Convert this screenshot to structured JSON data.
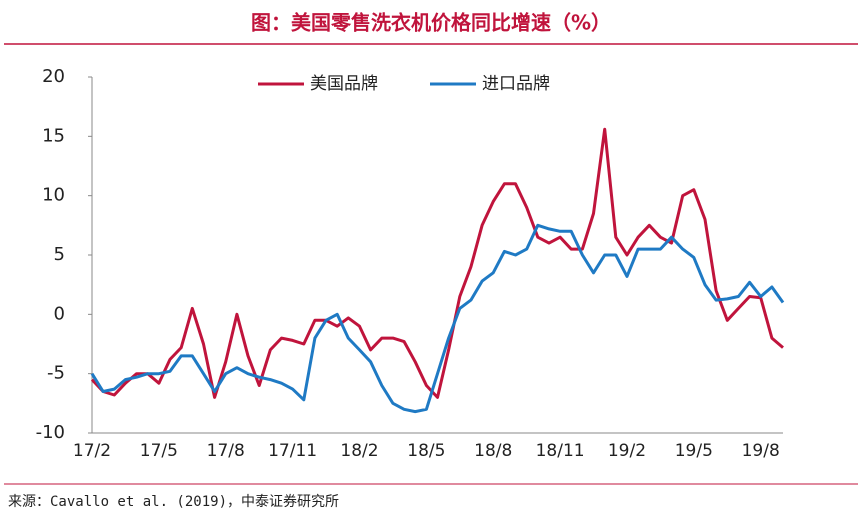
{
  "chart_data": {
    "type": "line",
    "title": "图：美国零售洗衣机价格同比增速（%）",
    "source": "来源：Cavallo et al. (2019)，中泰证券研究所",
    "categories": [
      "17/2",
      null,
      null,
      null,
      null,
      null,
      "17/5",
      null,
      null,
      null,
      null,
      null,
      "17/8",
      null,
      null,
      null,
      null,
      null,
      "17/11",
      null,
      null,
      null,
      null,
      null,
      "18/2",
      null,
      null,
      null,
      null,
      null,
      "18/5",
      null,
      null,
      null,
      null,
      null,
      "18/8",
      null,
      null,
      null,
      null,
      null,
      "18/11",
      null,
      null,
      null,
      null,
      null,
      "19/2",
      null,
      null,
      null,
      null,
      null,
      "19/5",
      null,
      null,
      null,
      null,
      null,
      "19/8",
      null,
      null
    ],
    "series": [
      {
        "name": "美国品牌",
        "color": "#c0143c",
        "values": [
          -5.5,
          -6.5,
          -6.8,
          -5.8,
          -5,
          -5,
          -5.8,
          -3.8,
          -2.8,
          0.5,
          -2.5,
          -7,
          -4,
          0,
          -3.5,
          -6,
          -3,
          -2,
          -2.2,
          -2.5,
          -0.5,
          -0.5,
          -1,
          -0.3,
          -1,
          -3,
          -2,
          -2,
          -2.3,
          -4,
          -6,
          -7,
          -3,
          1.5,
          4,
          7.5,
          9.5,
          11,
          11,
          9,
          6.5,
          6,
          6.5,
          5.5,
          5.5,
          8.5,
          15.6,
          6.5,
          5,
          6.5,
          7.5,
          6.5,
          6,
          10,
          10.5,
          8,
          2,
          -0.5,
          0.5,
          1.5,
          1.4,
          -2,
          -2.8
        ]
      },
      {
        "name": "进口品牌",
        "color": "#1f7ac4",
        "values": [
          -5,
          -6.5,
          -6.3,
          -5.5,
          -5.3,
          -5,
          -5,
          -4.8,
          -3.5,
          -3.5,
          -5,
          -6.5,
          -5,
          -4.5,
          -5,
          -5.3,
          -5.5,
          -5.8,
          -6.3,
          -7.2,
          -2,
          -0.5,
          0,
          -2,
          -3,
          -4,
          -6,
          -7.5,
          -8,
          -8.2,
          -8,
          -5,
          -2,
          0.5,
          1.2,
          2.8,
          3.5,
          5.3,
          5,
          5.5,
          7.5,
          7.2,
          7,
          7,
          5,
          3.5,
          5,
          5,
          3.2,
          5.5,
          5.5,
          5.5,
          6.5,
          5.5,
          4.8,
          2.5,
          1.2,
          1.3,
          1.5,
          2.7,
          1.5,
          2.3,
          1
        ]
      }
    ],
    "ylim": [
      -10,
      20
    ],
    "yticks": [
      -10,
      -5,
      0,
      5,
      10,
      15,
      20
    ],
    "grid": false
  }
}
